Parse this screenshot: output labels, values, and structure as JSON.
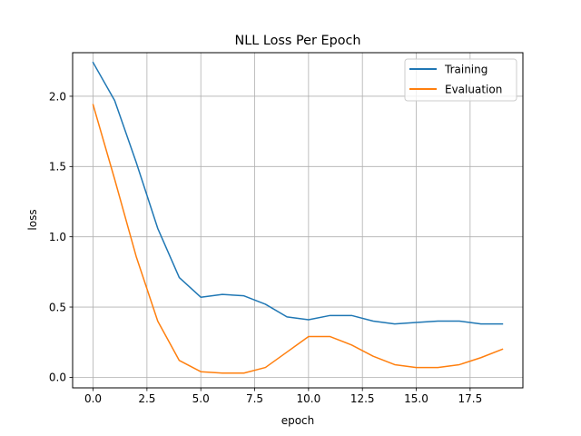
{
  "chart_data": {
    "type": "line",
    "title": "NLL Loss Per Epoch",
    "xlabel": "epoch",
    "ylabel": "loss",
    "xlim": [
      -0.95,
      19.95
    ],
    "ylim": [
      -0.075,
      2.31
    ],
    "grid": true,
    "legend_position": "top-right",
    "x_ticks": [
      0.0,
      2.5,
      5.0,
      7.5,
      10.0,
      12.5,
      15.0,
      17.5
    ],
    "x_tick_labels": [
      "0.0",
      "2.5",
      "5.0",
      "7.5",
      "10.0",
      "12.5",
      "15.0",
      "17.5"
    ],
    "y_ticks": [
      0.0,
      0.5,
      1.0,
      1.5,
      2.0
    ],
    "y_tick_labels": [
      "0.0",
      "0.5",
      "1.0",
      "1.5",
      "2.0"
    ],
    "x": [
      0,
      1,
      2,
      3,
      4,
      5,
      6,
      7,
      8,
      9,
      10,
      11,
      12,
      13,
      14,
      15,
      16,
      17,
      18,
      19
    ],
    "series": [
      {
        "name": "Training",
        "color": "#1f77b4",
        "values": [
          2.24,
          1.97,
          1.53,
          1.06,
          0.71,
          0.57,
          0.59,
          0.58,
          0.52,
          0.43,
          0.41,
          0.44,
          0.44,
          0.4,
          0.38,
          0.39,
          0.4,
          0.4,
          0.38,
          0.38
        ]
      },
      {
        "name": "Evaluation",
        "color": "#ff7f0e",
        "values": [
          1.94,
          1.41,
          0.86,
          0.4,
          0.12,
          0.04,
          0.03,
          0.03,
          0.07,
          0.18,
          0.29,
          0.29,
          0.23,
          0.15,
          0.09,
          0.07,
          0.07,
          0.09,
          0.14,
          0.2
        ]
      }
    ]
  }
}
